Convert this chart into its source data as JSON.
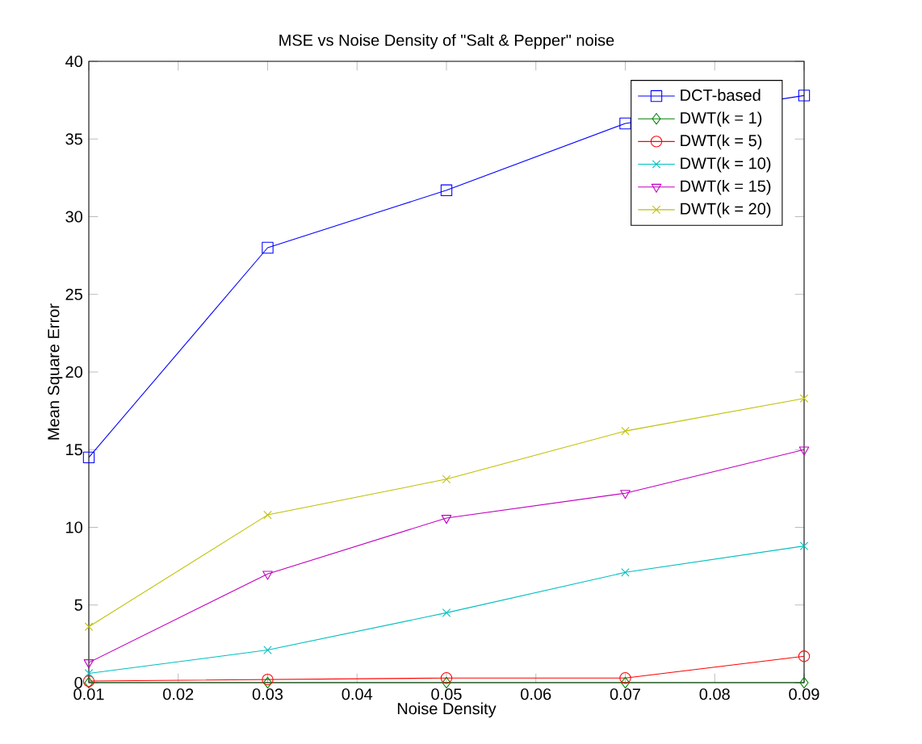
{
  "chart_data": {
    "type": "line",
    "title": "MSE vs Noise Density of \"Salt & Pepper\" noise",
    "xlabel": "Noise Density",
    "ylabel": "Mean Square Error",
    "x": [
      0.01,
      0.03,
      0.05,
      0.07,
      0.09
    ],
    "series": [
      {
        "name": "DCT-based",
        "color": "#0000ff",
        "marker": "square",
        "values": [
          14.5,
          28,
          31.7,
          36,
          37.8
        ]
      },
      {
        "name": "DWT(k = 1)",
        "color": "#008000",
        "marker": "diamond",
        "values": [
          0,
          0,
          0,
          0,
          0
        ]
      },
      {
        "name": "DWT(k = 5)",
        "color": "#ff0000",
        "marker": "circle",
        "values": [
          0.1,
          0.2,
          0.3,
          0.3,
          1.7
        ]
      },
      {
        "name": "DWT(k = 10)",
        "color": "#00bfbf",
        "marker": "cross",
        "values": [
          0.6,
          2.1,
          4.5,
          7.1,
          8.8
        ]
      },
      {
        "name": "DWT(k = 15)",
        "color": "#bf00bf",
        "marker": "triangle",
        "values": [
          1.3,
          7.0,
          10.6,
          12.2,
          15.0
        ]
      },
      {
        "name": "DWT(k = 20)",
        "color": "#bfbf00",
        "marker": "cross",
        "values": [
          3.6,
          10.8,
          13.1,
          16.2,
          18.3
        ]
      }
    ],
    "xlim": [
      0.01,
      0.09
    ],
    "xticks": [
      0.01,
      0.02,
      0.03,
      0.04,
      0.05,
      0.06,
      0.07,
      0.08,
      0.09
    ],
    "ylim": [
      0,
      40
    ],
    "yticks": [
      0,
      5,
      10,
      15,
      20,
      25,
      30,
      35,
      40
    ],
    "legend": "top right",
    "grid": false,
    "line_style": "solid"
  }
}
